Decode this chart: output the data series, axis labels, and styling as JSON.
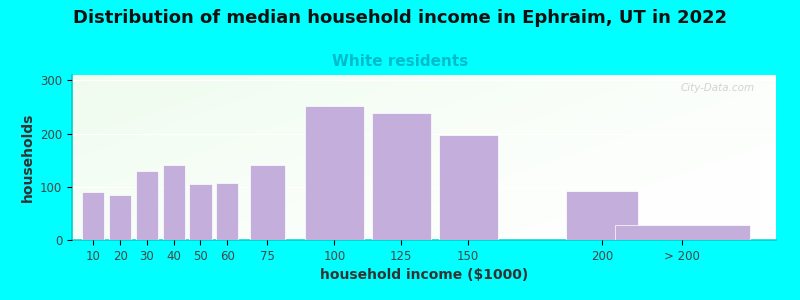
{
  "title": "Distribution of median household income in Ephraim, UT in 2022",
  "subtitle": "White residents",
  "xlabel": "household income ($1000)",
  "ylabel": "households",
  "bar_positions": [
    10,
    20,
    30,
    40,
    50,
    60,
    75,
    100,
    125,
    150,
    200,
    230
  ],
  "bar_widths": [
    9,
    9,
    9,
    9,
    9,
    9,
    14,
    24,
    24,
    24,
    29,
    55
  ],
  "tick_positions": [
    10,
    20,
    30,
    40,
    50,
    60,
    75,
    100,
    125,
    150,
    200,
    230
  ],
  "tick_labels": [
    "10",
    "20",
    "30",
    "40",
    "50",
    "60",
    "75",
    "100",
    "125",
    "150",
    "200",
    "> 200"
  ],
  "values": [
    90,
    85,
    130,
    140,
    105,
    108,
    140,
    252,
    238,
    198,
    92,
    28
  ],
  "bar_color": "#C4AEDB",
  "bar_edgecolor": "white",
  "title_fontsize": 13,
  "subtitle_fontsize": 11,
  "subtitle_color": "#00BBCC",
  "ylabel_fontsize": 10,
  "xlabel_fontsize": 10,
  "outer_bg": "#00FFFF",
  "xlim": [
    2,
    265
  ],
  "ylim": [
    0,
    310
  ],
  "yticks": [
    0,
    100,
    200,
    300
  ],
  "watermark": "City-Data.com"
}
